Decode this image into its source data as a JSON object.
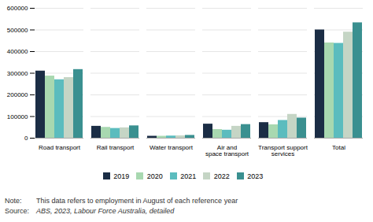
{
  "chart_data": {
    "type": "bar",
    "categories": [
      "Road transport",
      "Rail transport",
      "Water transport",
      "Air and\nspace transport",
      "Transport support\nservices",
      "Total"
    ],
    "series": [
      {
        "name": "2019",
        "color": "#1b2d45",
        "values": [
          310000,
          55000,
          9000,
          65000,
          72000,
          500000
        ]
      },
      {
        "name": "2020",
        "color": "#a8d8b0",
        "values": [
          287000,
          50000,
          9000,
          40000,
          62000,
          440000
        ]
      },
      {
        "name": "2021",
        "color": "#5bbcbe",
        "values": [
          270000,
          45000,
          10000,
          37000,
          82000,
          438000
        ]
      },
      {
        "name": "2022",
        "color": "#c5d5c5",
        "values": [
          280000,
          48000,
          11000,
          55000,
          110000,
          490000
        ]
      },
      {
        "name": "2023",
        "color": "#3a9090",
        "values": [
          317000,
          57000,
          13000,
          63000,
          93000,
          533000
        ]
      }
    ],
    "ylim": [
      0,
      600000
    ],
    "yticks": [
      0,
      100000,
      200000,
      300000,
      400000,
      500000,
      600000
    ],
    "grid": true,
    "legend": "bottom",
    "annotations": [
      {
        "label": "Note:",
        "text": "This data refers to employment in August of each reference year"
      },
      {
        "label": "Source:",
        "text": "ABS, 2023, Labour Force Australia, detailed"
      }
    ]
  }
}
